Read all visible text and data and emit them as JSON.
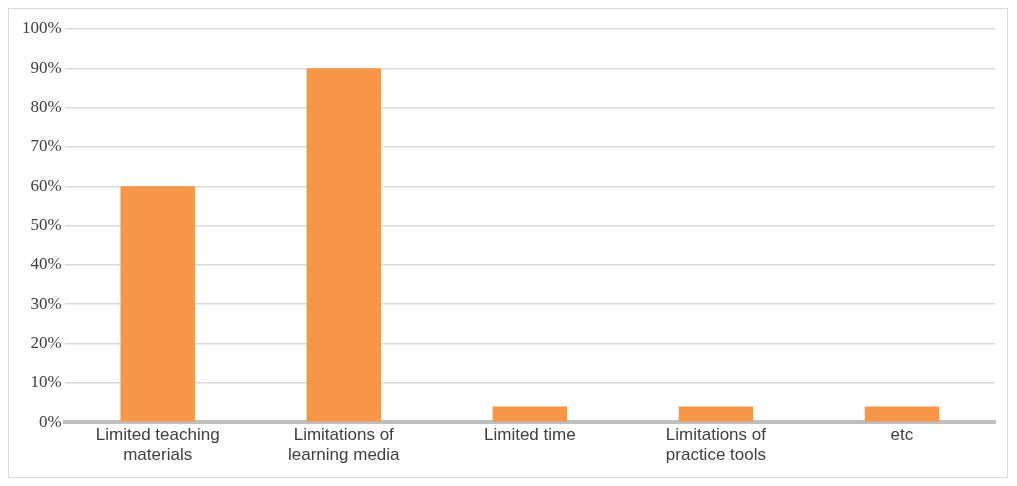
{
  "chart_data": {
    "type": "bar",
    "categories": [
      "Limited teaching materials",
      "Limitations of learning media",
      "Limited time",
      "Limitations of practice tools",
      "etc"
    ],
    "values": [
      60,
      90,
      4,
      4,
      4
    ],
    "color": "#f79646",
    "ylim": [
      0,
      100
    ],
    "yticks": [
      {
        "value": 0,
        "label": "0%"
      },
      {
        "value": 10,
        "label": "10%"
      },
      {
        "value": 20,
        "label": "20%"
      },
      {
        "value": 30,
        "label": "30%"
      },
      {
        "value": 40,
        "label": "40%"
      },
      {
        "value": 50,
        "label": "50%"
      },
      {
        "value": 60,
        "label": "60%"
      },
      {
        "value": 70,
        "label": "70%"
      },
      {
        "value": 80,
        "label": "80%"
      },
      {
        "value": 90,
        "label": "90%"
      },
      {
        "value": 100,
        "label": "100%"
      }
    ],
    "grid": "y"
  }
}
